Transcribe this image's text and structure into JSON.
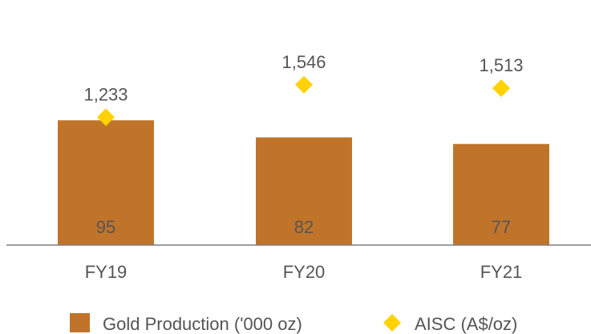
{
  "chart_data": {
    "type": "bar",
    "categories": [
      "FY19",
      "FY20",
      "FY21"
    ],
    "series": [
      {
        "name": "Gold Production ('000 oz)",
        "type": "bar",
        "axis": "left",
        "values": [
          95,
          82,
          77
        ],
        "data_labels": [
          "95",
          "82",
          "77"
        ],
        "color": "#C0742A"
      },
      {
        "name": "AISC (A$/oz)",
        "type": "scatter",
        "marker": "diamond",
        "axis": "right",
        "values": [
          1233,
          1546,
          1513
        ],
        "data_labels": [
          "1,233",
          "1,546",
          "1,513"
        ],
        "color": "#FFD200"
      }
    ],
    "ylim_left": [
      0,
      200
    ],
    "ylim_right": [
      0,
      2000
    ],
    "grid": false,
    "legend_position": "bottom"
  }
}
